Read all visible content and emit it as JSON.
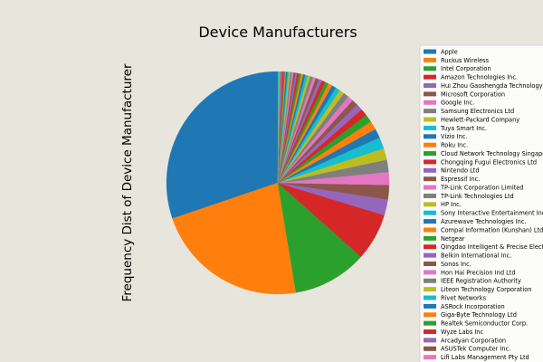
{
  "chart_data": {
    "type": "pie",
    "title": "Device Manufacturers",
    "ylabel": "Frequency Dist of Device Manufacturer",
    "legend_placement": "right",
    "start_angle_deg": 90,
    "direction": "counterclockwise",
    "slices": [
      {
        "label": "Apple",
        "value": 29.0,
        "color": "#1f77b4"
      },
      {
        "label": "Ruckus Wireless",
        "value": 21.5,
        "color": "#ff7f0e"
      },
      {
        "label": "Intel Corporation",
        "value": 10.4,
        "color": "#2ca02c"
      },
      {
        "label": "Amazon Technologies Inc.",
        "value": 6.6,
        "color": "#d62728"
      },
      {
        "label": "Hui Zhou Gaoshengda Technology Co.,LTD",
        "value": 2.2,
        "color": "#9467bd"
      },
      {
        "label": "Microsoft Corporation",
        "value": 2.0,
        "color": "#8c564b"
      },
      {
        "label": "Google Inc.",
        "value": 1.8,
        "color": "#e377c2"
      },
      {
        "label": "Samsung Electronics Ltd",
        "value": 1.7,
        "color": "#7f7f7f"
      },
      {
        "label": "Hewlett-Packard Company",
        "value": 1.6,
        "color": "#bcbd22"
      },
      {
        "label": "Tuya Smart Inc.",
        "value": 1.6,
        "color": "#17becf"
      },
      {
        "label": "Vizio Inc.",
        "value": 1.3,
        "color": "#1f77b4"
      },
      {
        "label": "Roku Inc.",
        "value": 1.2,
        "color": "#ff7f0e"
      },
      {
        "label": "Cloud Network Technology Singapore Pte. Ltd.",
        "value": 1.1,
        "color": "#2ca02c"
      },
      {
        "label": "Chongqing Fugui Electronics Ltd",
        "value": 1.0,
        "color": "#d62728"
      },
      {
        "label": "Nintendo Ltd",
        "value": 0.9,
        "color": "#9467bd"
      },
      {
        "label": "Espressif Inc.",
        "value": 0.85,
        "color": "#8c564b"
      },
      {
        "label": "TP-Link Corporation Limited",
        "value": 0.8,
        "color": "#e377c2"
      },
      {
        "label": "TP-Link Technologies Ltd",
        "value": 0.75,
        "color": "#7f7f7f"
      },
      {
        "label": "HP Inc.",
        "value": 0.7,
        "color": "#bcbd22"
      },
      {
        "label": "Sony Interactive Entertainment Inc.",
        "value": 0.65,
        "color": "#17becf"
      },
      {
        "label": "Azurewave Technologies Inc.",
        "value": 0.6,
        "color": "#1f77b4"
      },
      {
        "label": "Compal Information (Kunshan) Ltd",
        "value": 0.55,
        "color": "#ff7f0e"
      },
      {
        "label": "Netgear",
        "value": 0.5,
        "color": "#2ca02c"
      },
      {
        "label": "Qingdao Intelligent & Precise Electronics Co.,Ltd.",
        "value": 0.5,
        "color": "#d62728"
      },
      {
        "label": "Belkin International Inc.",
        "value": 0.45,
        "color": "#9467bd"
      },
      {
        "label": "Sonos Inc.",
        "value": 0.45,
        "color": "#8c564b"
      },
      {
        "label": "Hon Hai Precision Ind Ltd",
        "value": 0.4,
        "color": "#e377c2"
      },
      {
        "label": "IEEE Registration Authority",
        "value": 0.4,
        "color": "#7f7f7f"
      },
      {
        "label": "Liteon Technology Corporation",
        "value": 0.35,
        "color": "#bcbd22"
      },
      {
        "label": "Rivet Networks",
        "value": 0.35,
        "color": "#17becf"
      },
      {
        "label": "ASRock Incorporation",
        "value": 0.3,
        "color": "#1f77b4"
      },
      {
        "label": "Giga-Byte Technology Ltd",
        "value": 0.3,
        "color": "#ff7f0e"
      },
      {
        "label": "Realtek Semiconductor Corp.",
        "value": 0.3,
        "color": "#2ca02c"
      },
      {
        "label": "Wyze Labs Inc",
        "value": 0.25,
        "color": "#d62728"
      },
      {
        "label": "Arcadyan Corporation",
        "value": 0.25,
        "color": "#9467bd"
      },
      {
        "label": "ASUSTek Computer Inc.",
        "value": 0.25,
        "color": "#8c564b"
      },
      {
        "label": "Lifi Labs Management Pty Ltd",
        "value": 0.25,
        "color": "#e377c2"
      },
      {
        "label": "",
        "value": 0.2,
        "color": "#7f7f7f"
      },
      {
        "label": "",
        "value": 0.2,
        "color": "#bcbd22"
      },
      {
        "label": "",
        "value": 0.2,
        "color": "#17becf"
      },
      {
        "label": "",
        "value": 0.2,
        "color": "#1f77b4"
      },
      {
        "label": "",
        "value": 0.15,
        "color": "#ff7f0e"
      },
      {
        "label": "",
        "value": 0.15,
        "color": "#2ca02c"
      },
      {
        "label": "",
        "value": 0.15,
        "color": "#d62728"
      },
      {
        "label": "",
        "value": 0.15,
        "color": "#9467bd"
      },
      {
        "label": "",
        "value": 0.1,
        "color": "#8c564b"
      },
      {
        "label": "",
        "value": 0.1,
        "color": "#e377c2"
      },
      {
        "label": "",
        "value": 0.1,
        "color": "#7f7f7f"
      },
      {
        "label": "",
        "value": 0.1,
        "color": "#bcbd22"
      },
      {
        "label": "",
        "value": 0.1,
        "color": "#17becf"
      }
    ]
  }
}
